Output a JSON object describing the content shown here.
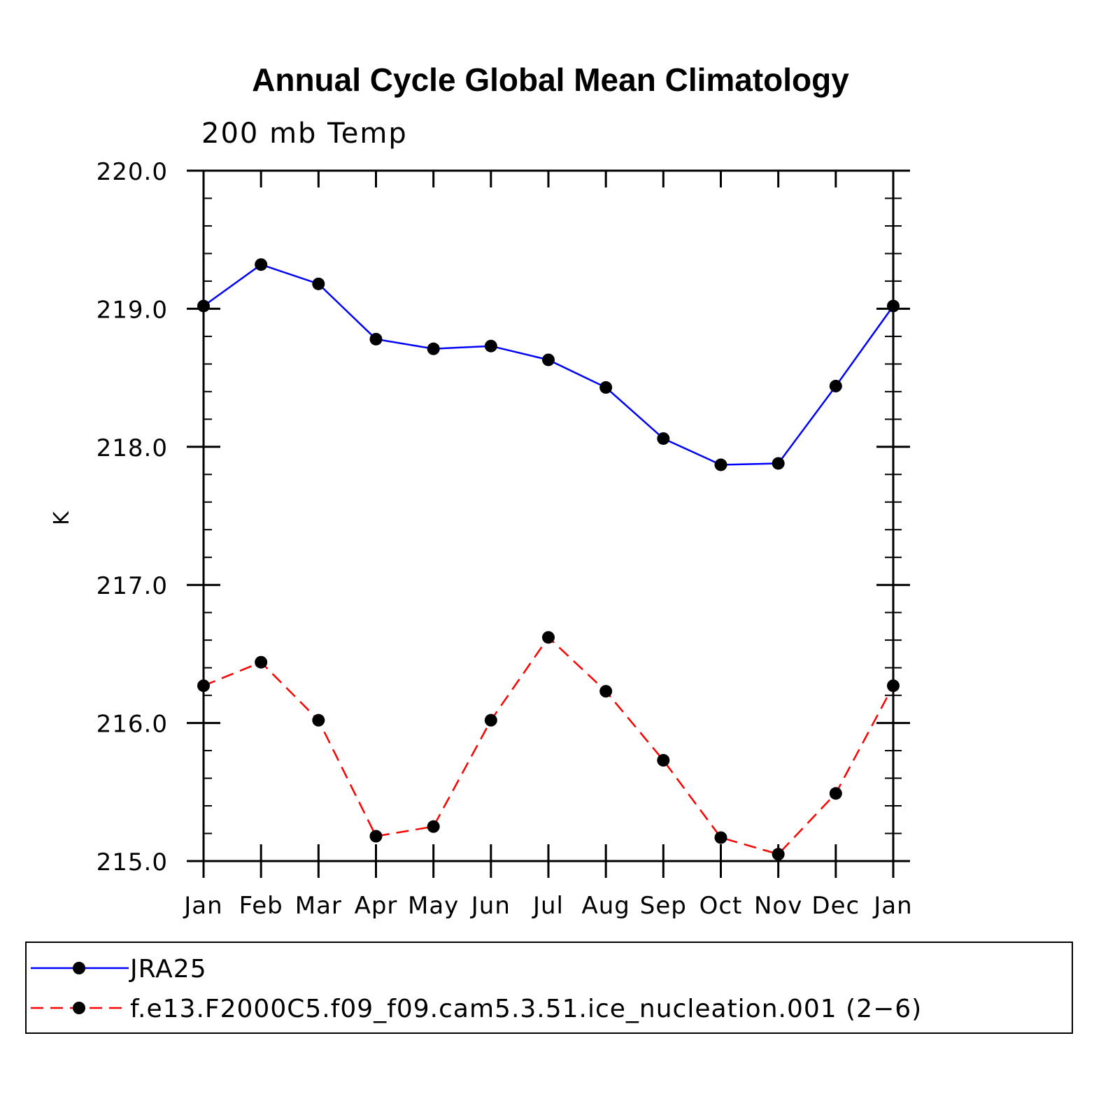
{
  "chart_data": {
    "type": "line",
    "title": "Annual Cycle Global Mean Climatology",
    "subtitle": "200 mb Temp",
    "xlabel": "",
    "ylabel": "K",
    "categories": [
      "Jan",
      "Feb",
      "Mar",
      "Apr",
      "May",
      "Jun",
      "Jul",
      "Aug",
      "Sep",
      "Oct",
      "Nov",
      "Dec",
      "Jan"
    ],
    "ylim": [
      215.0,
      220.0
    ],
    "yticks": [
      "215.0",
      "216.0",
      "217.0",
      "218.0",
      "219.0",
      "220.0"
    ],
    "y_minor_step": 0.2,
    "grid": false,
    "series": [
      {
        "name": "JRA25",
        "color": "#0000ff",
        "dash": "solid",
        "marker": "filled-circle",
        "values": [
          219.02,
          219.32,
          219.18,
          218.78,
          218.71,
          218.73,
          218.63,
          218.43,
          218.06,
          217.87,
          217.88,
          218.44,
          219.02
        ]
      },
      {
        "name": "f.e13.F2000C5.f09_f09.cam5.3.51.ice_nucleation.001 (2−6)",
        "color": "#ff0000",
        "dash": "dashed",
        "marker": "filled-circle",
        "values": [
          216.27,
          216.44,
          216.02,
          215.18,
          215.25,
          216.02,
          216.62,
          216.23,
          215.73,
          215.17,
          215.05,
          215.49,
          216.27
        ]
      }
    ],
    "legend_position": "bottom"
  }
}
